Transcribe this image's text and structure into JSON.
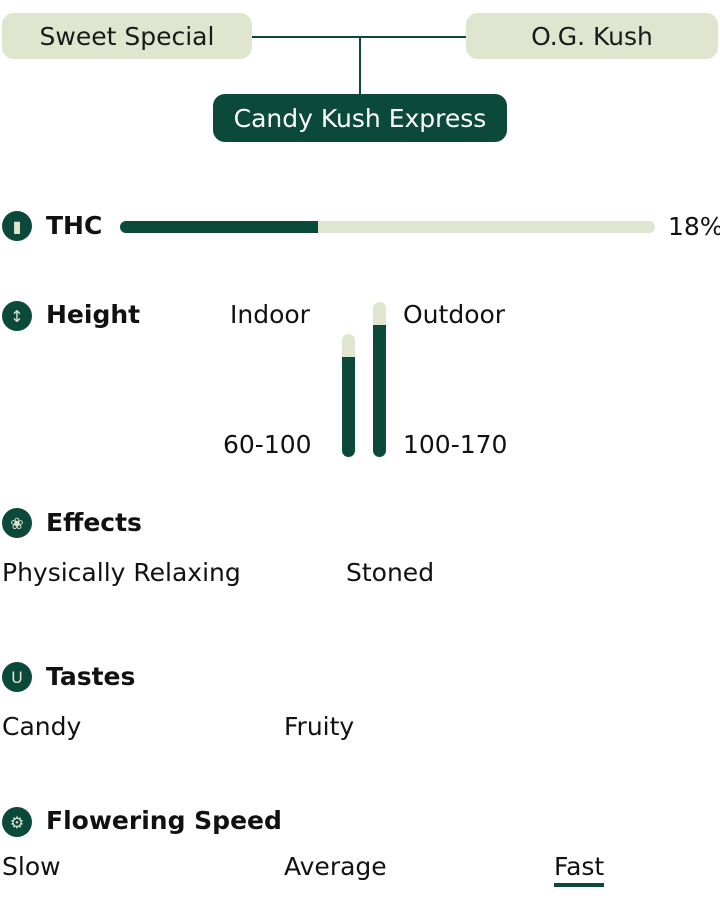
{
  "lineage": {
    "parent1": "Sweet Special",
    "parent2": "O.G. Kush",
    "strain": "Candy Kush Express"
  },
  "thc": {
    "label": "THC",
    "value": "18%",
    "fill_percent": 37
  },
  "height": {
    "label": "Height",
    "indoor_label": "Indoor",
    "outdoor_label": "Outdoor",
    "indoor_value": "60-100",
    "outdoor_value": "100-170",
    "indoor_fill_percent": 81,
    "outdoor_fill_percent": 85
  },
  "effects": {
    "label": "Effects",
    "items": [
      "Physically Relaxing",
      "Stoned"
    ]
  },
  "tastes": {
    "label": "Tastes",
    "items": [
      "Candy",
      "Fruity"
    ]
  },
  "flowering": {
    "label": "Flowering Speed",
    "options": [
      "Slow",
      "Average",
      "Fast"
    ],
    "selected": "Fast"
  },
  "colors": {
    "accent": "#0b4a3b",
    "light": "#dfe5cf"
  },
  "icons": {
    "thc": "signal-bars-icon",
    "height": "up-down-arrow-icon",
    "effects": "brain-icon",
    "tastes": "tongue-icon",
    "flowering": "clock-gear-icon"
  }
}
